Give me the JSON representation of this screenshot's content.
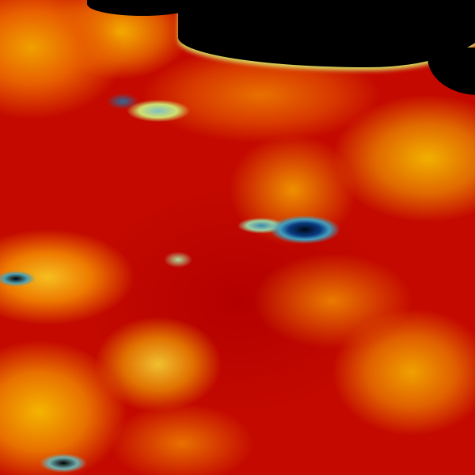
{
  "image": {
    "kind": "false-color satellite imagery",
    "palette": {
      "high": "#c40a00",
      "mid": "#e87000",
      "warm": "#f5c020",
      "cool": "#40a0c0",
      "lowest": "#000814",
      "no_data": "#000000"
    }
  }
}
